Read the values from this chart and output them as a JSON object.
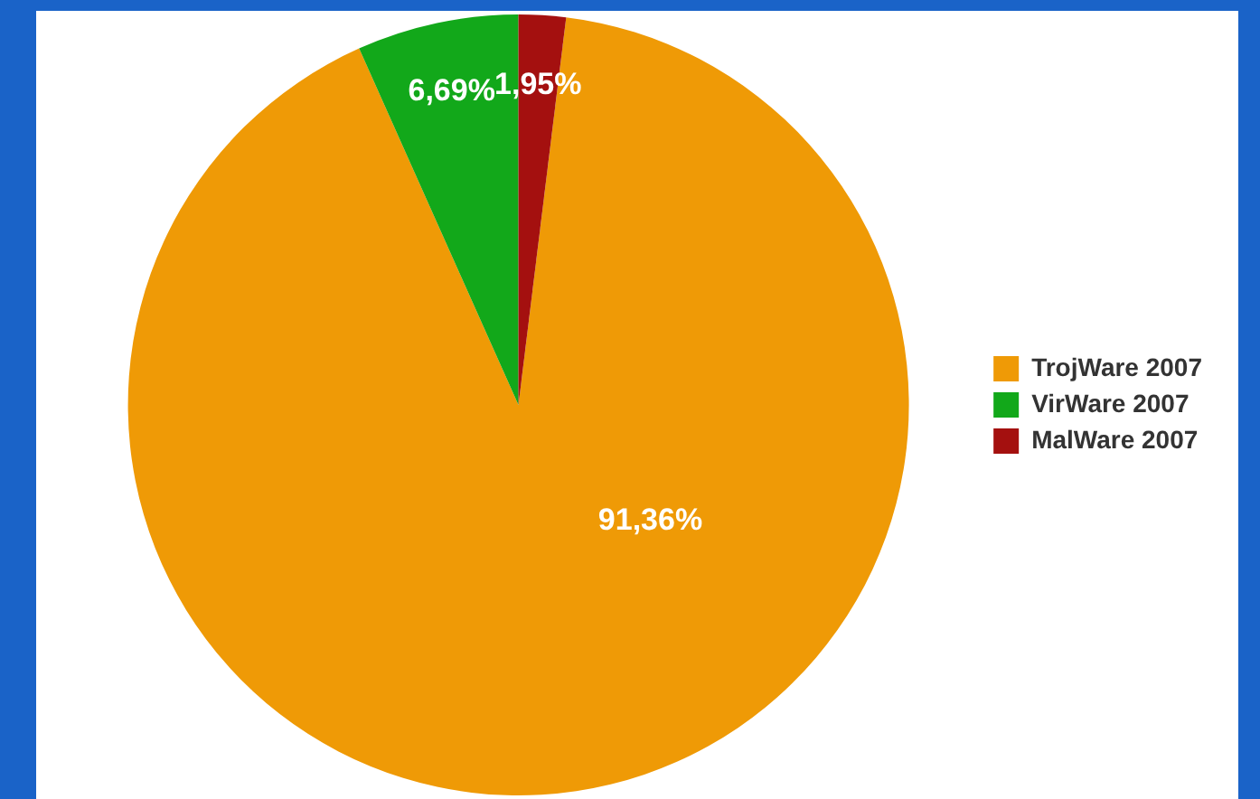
{
  "chart_data": {
    "type": "pie",
    "categories": [
      "TrojWare 2007",
      "VirWare 2007",
      "MalWare 2007"
    ],
    "values": [
      91.36,
      6.69,
      1.95
    ],
    "colors": [
      "#ef9a06",
      "#12a81a",
      "#a4100f"
    ],
    "value_labels": [
      "91,36%",
      "6,69%",
      "1,95%"
    ],
    "legend": "right"
  }
}
